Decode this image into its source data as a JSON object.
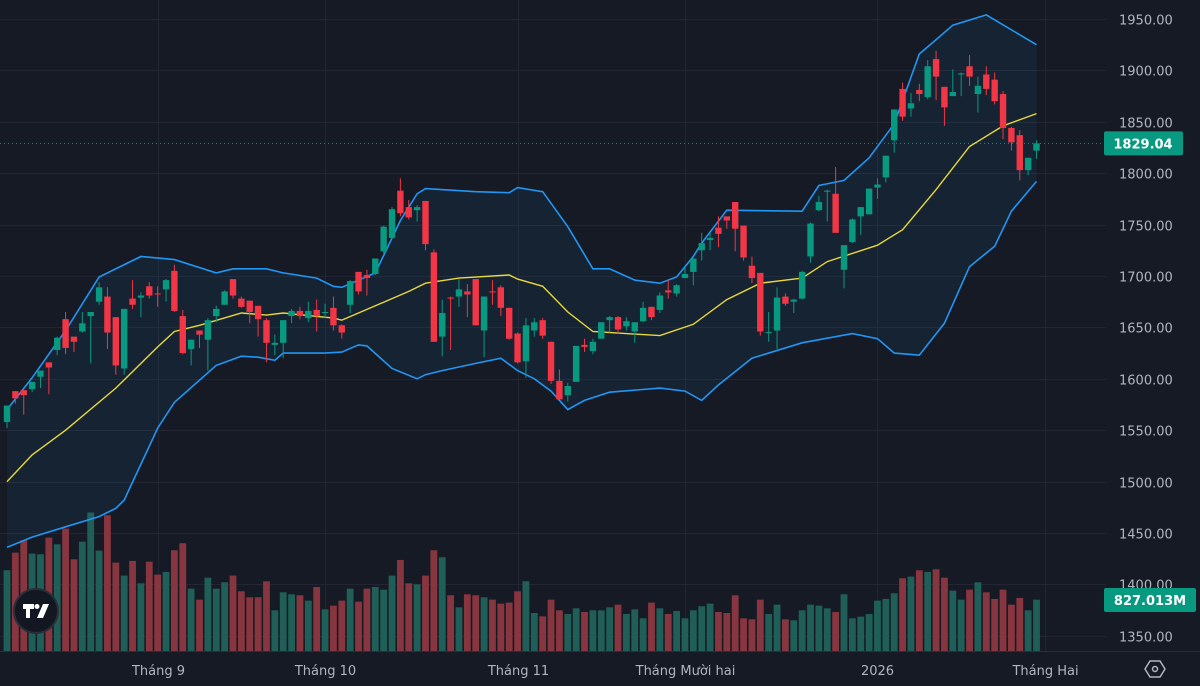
{
  "chart_data": {
    "type": "candlestick",
    "price_axis": {
      "ticks": [
        "1950.00",
        "1900.00",
        "1850.00",
        "1800.00",
        "1750.00",
        "1700.00",
        "1650.00",
        "1600.00",
        "1550.00",
        "1500.00",
        "1450.00",
        "1400.00",
        "1350.00"
      ],
      "range": [
        1350,
        1950
      ]
    },
    "time_axis": {
      "ticks": [
        {
          "label": "Tháng 9",
          "index": 18
        },
        {
          "label": "Tháng 10",
          "index": 38
        },
        {
          "label": "Tháng 11",
          "index": 61
        },
        {
          "label": "Tháng Mười hai",
          "index": 81
        },
        {
          "label": "2026",
          "index": 104
        },
        {
          "label": "Tháng Hai",
          "index": 124
        }
      ]
    },
    "grid": true,
    "last_price": {
      "value": 1829.04,
      "label": "1829.04"
    },
    "last_volume": {
      "value": 827.013,
      "label": "827.013M"
    },
    "colors": {
      "up": "#089981",
      "down": "#f23645",
      "volume_up": "#1f5f58",
      "volume_down": "#87353f",
      "bands": "#2196f3",
      "basis": "#e8d83a",
      "background": "#161a25"
    },
    "ohlc": [
      [
        1558,
        1574,
        1552,
        1574
      ],
      [
        1588,
        1588,
        1576,
        1581
      ],
      [
        1589,
        1589,
        1565,
        1584
      ],
      [
        1590,
        1597,
        1587,
        1597
      ],
      [
        1602,
        1608,
        1591,
        1608
      ],
      [
        1616,
        1616,
        1585,
        1611
      ],
      [
        1628,
        1641,
        1623,
        1640
      ],
      [
        1658,
        1665,
        1624,
        1630
      ],
      [
        1641,
        1641,
        1626,
        1636
      ],
      [
        1646,
        1665,
        1645,
        1654
      ],
      [
        1661,
        1665,
        1615,
        1665
      ],
      [
        1675,
        1694,
        1672,
        1689
      ],
      [
        1680,
        1689,
        1629,
        1645
      ],
      [
        1660,
        1660,
        1604,
        1613
      ],
      [
        1610,
        1668,
        1604,
        1668
      ],
      [
        1678,
        1696,
        1668,
        1672
      ],
      [
        1679,
        1684,
        1660,
        1681
      ],
      [
        1690,
        1694,
        1678,
        1681
      ],
      [
        1683,
        1690,
        1670,
        1682
      ],
      [
        1687,
        1697,
        1675,
        1696
      ],
      [
        1705,
        1711,
        1665,
        1666
      ],
      [
        1661,
        1667,
        1624,
        1625
      ],
      [
        1629,
        1638,
        1613,
        1638
      ],
      [
        1647,
        1647,
        1630,
        1643
      ],
      [
        1638,
        1659,
        1608,
        1657
      ],
      [
        1661,
        1671,
        1655,
        1668
      ],
      [
        1672,
        1686,
        1672,
        1685
      ],
      [
        1697,
        1697,
        1678,
        1681
      ],
      [
        1678,
        1680,
        1669,
        1670
      ],
      [
        1676,
        1676,
        1654,
        1665
      ],
      [
        1671,
        1671,
        1641,
        1658
      ],
      [
        1657,
        1659,
        1616,
        1635
      ],
      [
        1633,
        1643,
        1623,
        1635
      ],
      [
        1635,
        1657,
        1620,
        1657
      ],
      [
        1661,
        1668,
        1654,
        1666
      ],
      [
        1666,
        1670,
        1658,
        1661
      ],
      [
        1659,
        1675,
        1655,
        1666
      ],
      [
        1667,
        1677,
        1646,
        1661
      ],
      [
        1664,
        1673,
        1659,
        1665
      ],
      [
        1669,
        1680,
        1647,
        1652
      ],
      [
        1652,
        1653,
        1639,
        1645
      ],
      [
        1672,
        1696,
        1664,
        1695
      ],
      [
        1704,
        1704,
        1682,
        1685
      ],
      [
        1701,
        1706,
        1681,
        1698
      ],
      [
        1702,
        1717,
        1701,
        1717
      ],
      [
        1724,
        1749,
        1722,
        1748
      ],
      [
        1737,
        1767,
        1736,
        1765
      ],
      [
        1783,
        1795,
        1758,
        1761
      ],
      [
        1767,
        1774,
        1755,
        1757
      ],
      [
        1764,
        1769,
        1753,
        1767
      ],
      [
        1773,
        1773,
        1725,
        1731
      ],
      [
        1723,
        1726,
        1636,
        1636
      ],
      [
        1641,
        1677,
        1622,
        1664
      ],
      [
        1679,
        1680,
        1628,
        1678
      ],
      [
        1680,
        1697,
        1670,
        1687
      ],
      [
        1685,
        1692,
        1660,
        1682
      ],
      [
        1697,
        1697,
        1652,
        1652
      ],
      [
        1647,
        1680,
        1621,
        1680
      ],
      [
        1685,
        1696,
        1672,
        1684
      ],
      [
        1689,
        1691,
        1661,
        1669
      ],
      [
        1669,
        1669,
        1638,
        1639
      ],
      [
        1644,
        1645,
        1615,
        1616
      ],
      [
        1617,
        1659,
        1601,
        1652
      ],
      [
        1647,
        1659,
        1641,
        1655
      ],
      [
        1657,
        1659,
        1639,
        1642
      ],
      [
        1636,
        1636,
        1595,
        1598
      ],
      [
        1598,
        1609,
        1580,
        1580
      ],
      [
        1584,
        1596,
        1578,
        1593
      ],
      [
        1597,
        1632,
        1597,
        1632
      ],
      [
        1633,
        1639,
        1626,
        1631
      ],
      [
        1627,
        1639,
        1624,
        1636
      ],
      [
        1639,
        1655,
        1639,
        1655
      ],
      [
        1657,
        1661,
        1645,
        1660
      ],
      [
        1660,
        1661,
        1644,
        1648
      ],
      [
        1651,
        1660,
        1647,
        1656
      ],
      [
        1646,
        1655,
        1635,
        1655
      ],
      [
        1656,
        1675,
        1655,
        1669
      ],
      [
        1670,
        1670,
        1657,
        1660
      ],
      [
        1667,
        1684,
        1664,
        1681
      ],
      [
        1686,
        1696,
        1678,
        1684
      ],
      [
        1683,
        1692,
        1680,
        1691
      ],
      [
        1698,
        1709,
        1698,
        1702
      ],
      [
        1704,
        1717,
        1691,
        1717
      ],
      [
        1725,
        1742,
        1715,
        1732
      ],
      [
        1735,
        1742,
        1725,
        1737
      ],
      [
        1747,
        1758,
        1728,
        1741
      ],
      [
        1758,
        1758,
        1746,
        1754
      ],
      [
        1772,
        1772,
        1724,
        1746
      ],
      [
        1749,
        1749,
        1715,
        1718
      ],
      [
        1710,
        1719,
        1693,
        1698
      ],
      [
        1703,
        1703,
        1642,
        1646
      ],
      [
        1645,
        1665,
        1636,
        1645.5
      ],
      [
        1647,
        1689,
        1629,
        1679
      ],
      [
        1680,
        1683,
        1671,
        1673
      ],
      [
        1675,
        1678,
        1664,
        1677
      ],
      [
        1678,
        1705,
        1677,
        1704
      ],
      [
        1719,
        1752,
        1713,
        1751
      ],
      [
        1764,
        1778,
        1763,
        1772
      ],
      [
        1782,
        1784,
        1753,
        1783
      ],
      [
        1780,
        1806,
        1742,
        1742
      ],
      [
        1706,
        1730,
        1688,
        1730
      ],
      [
        1733,
        1756,
        1732,
        1755
      ],
      [
        1758,
        1767,
        1740,
        1767
      ],
      [
        1760,
        1785,
        1760,
        1785
      ],
      [
        1786,
        1795,
        1775,
        1789
      ],
      [
        1796,
        1817,
        1791,
        1817
      ],
      [
        1832,
        1862,
        1820,
        1862
      ],
      [
        1882,
        1888,
        1851,
        1855
      ],
      [
        1863,
        1878,
        1855,
        1868
      ],
      [
        1881,
        1887,
        1870,
        1877
      ],
      [
        1874,
        1910,
        1872,
        1904
      ],
      [
        1911,
        1919,
        1871,
        1894
      ],
      [
        1884,
        1884,
        1846,
        1864
      ],
      [
        1875,
        1901,
        1875,
        1879
      ],
      [
        1896,
        1898,
        1875,
        1897
      ],
      [
        1904,
        1915,
        1885,
        1894
      ],
      [
        1877,
        1894,
        1859,
        1885
      ],
      [
        1896,
        1904,
        1876,
        1882
      ],
      [
        1891,
        1898,
        1867,
        1870
      ],
      [
        1877,
        1880,
        1833,
        1844
      ],
      [
        1844,
        1845,
        1822,
        1830
      ],
      [
        1837,
        1842,
        1793,
        1803
      ],
      [
        1803,
        1815,
        1798,
        1815
      ],
      [
        1822,
        1832,
        1814,
        1829.04
      ]
    ],
    "volume_millions": [
      1300,
      1584,
      1783,
      1568,
      1557,
      1826,
      1718,
      1971,
      1477,
      1761,
      2229,
      1616,
      2186,
      1423,
      1214,
      1450,
      1090,
      1439,
      1230,
      1273,
      1622,
      1735,
      1004,
      827,
      1181,
      1004,
      1106,
      1214,
      961,
      865,
      865,
      1122,
      655,
      945,
      913,
      897,
      811,
      1031,
      671,
      730,
      811,
      1004,
      795,
      1004,
      1031,
      988,
      1214,
      1466,
      1090,
      1074,
      1214,
      1622,
      1509,
      897,
      703,
      913,
      897,
      865,
      827,
      763,
      779,
      961,
      1122,
      612,
      558,
      827,
      655,
      596,
      687,
      628,
      655,
      655,
      703,
      746,
      596,
      671,
      526,
      779,
      687,
      596,
      644,
      526,
      655,
      720,
      763,
      628,
      612,
      897,
      526,
      510,
      827,
      596,
      746,
      510,
      494,
      655,
      746,
      730,
      687,
      628,
      913,
      526,
      553,
      596,
      811,
      838,
      929,
      1171,
      1198,
      1300,
      1273,
      1316,
      1181,
      972,
      827,
      988,
      1106,
      945,
      838,
      988,
      746,
      854,
      655,
      827.013
    ],
    "bollinger": {
      "upper": [
        [
          0,
          1570
        ],
        [
          3,
          1601
        ],
        [
          7,
          1647
        ],
        [
          11,
          1699
        ],
        [
          16,
          1719
        ],
        [
          20,
          1716
        ],
        [
          25,
          1703
        ],
        [
          27,
          1707
        ],
        [
          31,
          1707
        ],
        [
          33,
          1703
        ],
        [
          37,
          1698
        ],
        [
          39,
          1690
        ],
        [
          40,
          1689
        ],
        [
          42,
          1696
        ],
        [
          44,
          1703
        ],
        [
          47,
          1754
        ],
        [
          49,
          1780
        ],
        [
          50,
          1785
        ],
        [
          56,
          1782
        ],
        [
          60,
          1781
        ],
        [
          61,
          1786
        ],
        [
          64,
          1782
        ],
        [
          67,
          1748
        ],
        [
          70,
          1707
        ],
        [
          72,
          1707
        ],
        [
          75,
          1696
        ],
        [
          78,
          1693
        ],
        [
          80,
          1699
        ],
        [
          82,
          1719
        ],
        [
          83,
          1732
        ],
        [
          86,
          1764
        ],
        [
          95,
          1763
        ],
        [
          97,
          1788
        ],
        [
          100,
          1793
        ],
        [
          103,
          1815
        ],
        [
          106,
          1848
        ],
        [
          109,
          1916
        ],
        [
          111,
          1930
        ],
        [
          113,
          1944
        ],
        [
          117,
          1954
        ],
        [
          123,
          1925
        ]
      ],
      "basis": [
        [
          0,
          1500
        ],
        [
          3,
          1526
        ],
        [
          7,
          1550
        ],
        [
          13,
          1591
        ],
        [
          18,
          1631
        ],
        [
          20,
          1646
        ],
        [
          23,
          1652
        ],
        [
          28,
          1664
        ],
        [
          31,
          1662
        ],
        [
          33,
          1664
        ],
        [
          39,
          1659
        ],
        [
          40,
          1657
        ],
        [
          42,
          1664
        ],
        [
          48,
          1685
        ],
        [
          50,
          1693
        ],
        [
          54,
          1698
        ],
        [
          60,
          1701
        ],
        [
          61,
          1697
        ],
        [
          64,
          1690
        ],
        [
          67,
          1665
        ],
        [
          70,
          1646
        ],
        [
          76,
          1643
        ],
        [
          78,
          1642
        ],
        [
          82,
          1653
        ],
        [
          86,
          1677
        ],
        [
          90,
          1693
        ],
        [
          95,
          1698
        ],
        [
          98,
          1714
        ],
        [
          104,
          1730
        ],
        [
          107,
          1745
        ],
        [
          111,
          1784
        ],
        [
          115,
          1826
        ],
        [
          119,
          1846
        ],
        [
          123,
          1858
        ]
      ],
      "lower": [
        [
          0,
          1436
        ],
        [
          3,
          1446
        ],
        [
          7,
          1456
        ],
        [
          11,
          1466
        ],
        [
          13,
          1474
        ],
        [
          14,
          1482
        ],
        [
          18,
          1552
        ],
        [
          20,
          1577
        ],
        [
          25,
          1613
        ],
        [
          28,
          1622
        ],
        [
          30,
          1621
        ],
        [
          32,
          1618
        ],
        [
          33,
          1625
        ],
        [
          38,
          1625
        ],
        [
          40,
          1626
        ],
        [
          42,
          1633
        ],
        [
          43,
          1632
        ],
        [
          46,
          1610
        ],
        [
          49,
          1600
        ],
        [
          50,
          1604
        ],
        [
          52,
          1608
        ],
        [
          56,
          1615
        ],
        [
          59,
          1620
        ],
        [
          61,
          1608
        ],
        [
          63,
          1600
        ],
        [
          65,
          1588
        ],
        [
          67,
          1570
        ],
        [
          69,
          1579
        ],
        [
          72,
          1587
        ],
        [
          78,
          1591
        ],
        [
          81,
          1588
        ],
        [
          83,
          1579
        ],
        [
          85,
          1594
        ],
        [
          89,
          1620
        ],
        [
          95,
          1635
        ],
        [
          101,
          1644
        ],
        [
          104,
          1639
        ],
        [
          106,
          1625
        ],
        [
          109,
          1623
        ],
        [
          112,
          1654
        ],
        [
          115,
          1709
        ],
        [
          118,
          1729
        ],
        [
          120,
          1763
        ],
        [
          123,
          1792
        ]
      ]
    }
  },
  "logo": {
    "text": "TV"
  },
  "icons": {
    "settings": "hexagon-eye-icon"
  }
}
